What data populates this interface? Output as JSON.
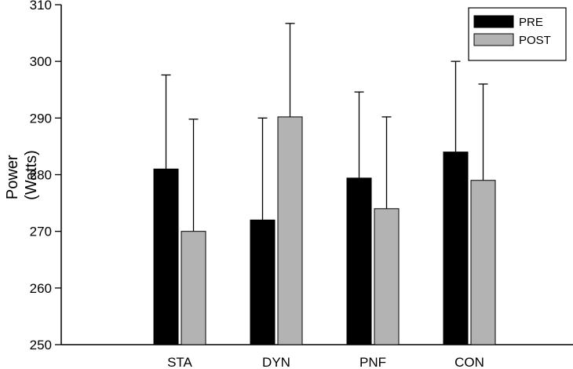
{
  "chart_data": {
    "type": "bar",
    "title": "",
    "xlabel": "",
    "ylabel_lines": [
      "Power",
      "(Watts)"
    ],
    "categories": [
      "STA",
      "DYN",
      "PNF",
      "CON"
    ],
    "ylim": [
      250,
      310
    ],
    "yticks": [
      250,
      260,
      270,
      280,
      290,
      300,
      310
    ],
    "grid": false,
    "legend_position": "top-right",
    "series": [
      {
        "name": "PRE",
        "color": "#000000",
        "values": [
          281.0,
          272.0,
          279.4,
          284.0
        ],
        "errors": [
          16.6,
          18.0,
          15.2,
          16.0
        ]
      },
      {
        "name": "POST",
        "color": "#b3b3b3",
        "values": [
          270.0,
          290.2,
          274.0,
          279.0
        ],
        "errors": [
          19.8,
          16.5,
          16.2,
          17.0
        ]
      }
    ]
  }
}
